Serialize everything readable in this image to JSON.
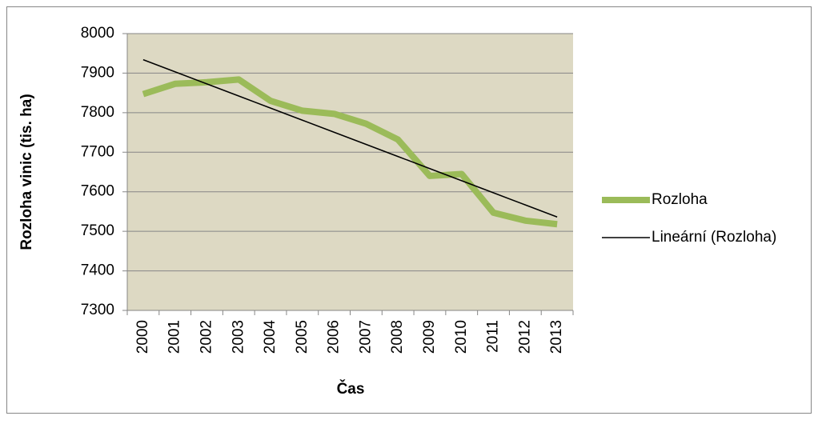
{
  "chart_data": {
    "type": "line",
    "y_label": "Rozloha vinic (tis. ha)",
    "x_label": "Čas",
    "categories": [
      "2000",
      "2001",
      "2002",
      "2003",
      "2004",
      "2005",
      "2006",
      "2007",
      "2008",
      "2009",
      "2010",
      "2011",
      "2012",
      "2013"
    ],
    "series": [
      {
        "name": "Rozloha",
        "color": "#9bbb59",
        "values": [
          7847,
          7873,
          7877,
          7884,
          7830,
          7805,
          7797,
          7772,
          7732,
          7640,
          7645,
          7547,
          7527,
          7518
        ]
      },
      {
        "name": "Lineární (Rozloha)",
        "color": "#000000",
        "values": [
          7934,
          7903.4,
          7872.8,
          7842.2,
          7811.6,
          7781,
          7750.4,
          7719.8,
          7689.2,
          7658.6,
          7628,
          7597.4,
          7566.8,
          7536.2
        ]
      }
    ],
    "ylim": [
      7300,
      8000
    ],
    "yticks": [
      7300,
      7400,
      7500,
      7600,
      7700,
      7800,
      7900,
      8000
    ],
    "grid": true,
    "legend": "right",
    "plot_background": "#ddd9c3"
  }
}
